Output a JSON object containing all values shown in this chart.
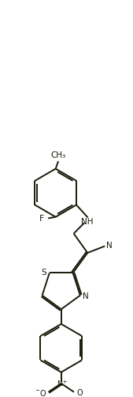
{
  "bg": "#ffffff",
  "lc": "#1a1a0a",
  "lw": 1.4,
  "fw": 1.69,
  "fh": 5.02,
  "dpi": 100,
  "xlim": [
    0.5,
    5.5
  ],
  "ylim": [
    0.0,
    14.8
  ]
}
